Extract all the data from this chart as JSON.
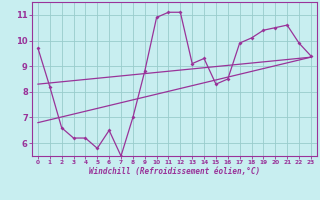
{
  "xlabel": "Windchill (Refroidissement éolien,°C)",
  "ylabel": "",
  "xlim": [
    -0.5,
    23.5
  ],
  "ylim": [
    5.5,
    11.5
  ],
  "yticks": [
    6,
    7,
    8,
    9,
    10,
    11
  ],
  "xticks": [
    0,
    1,
    2,
    3,
    4,
    5,
    6,
    7,
    8,
    9,
    10,
    11,
    12,
    13,
    14,
    15,
    16,
    17,
    18,
    19,
    20,
    21,
    22,
    23
  ],
  "bg_color": "#c8eef0",
  "line_color": "#993399",
  "grid_color": "#99cccc",
  "zigzag_x": [
    0,
    1,
    2,
    3,
    4,
    5,
    6,
    7,
    8,
    9,
    10,
    11,
    12,
    13,
    14,
    15,
    16,
    17,
    18,
    19,
    20,
    21,
    22,
    23
  ],
  "zigzag_y": [
    9.7,
    8.2,
    6.6,
    6.2,
    6.2,
    5.8,
    6.5,
    5.5,
    7.0,
    8.8,
    10.9,
    11.1,
    11.1,
    9.1,
    9.3,
    8.3,
    8.5,
    9.9,
    10.1,
    10.4,
    10.5,
    10.6,
    9.9,
    9.4
  ],
  "trend1_x": [
    0,
    23
  ],
  "trend1_y": [
    8.3,
    9.35
  ],
  "trend2_x": [
    0,
    23
  ],
  "trend2_y": [
    6.8,
    9.35
  ]
}
